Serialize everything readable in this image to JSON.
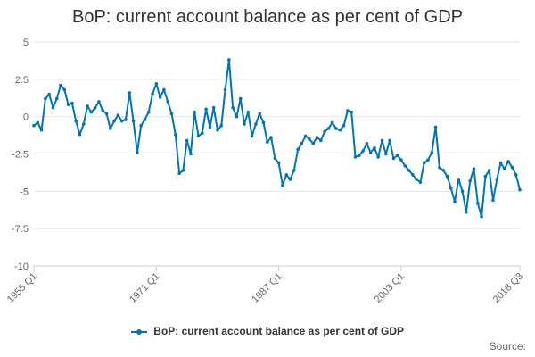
{
  "chart_data": {
    "type": "line",
    "title": "BoP: current account balance as per cent of GDP",
    "xlabel": "",
    "ylabel": "",
    "ylim": [
      -10,
      5
    ],
    "y_ticks": [
      "5",
      "2.5",
      "0",
      "-2.5",
      "-5",
      "-7.5",
      "-10"
    ],
    "y_tick_values": [
      5,
      2.5,
      0,
      -2.5,
      -5,
      -7.5,
      -10
    ],
    "x_ticks": [
      "1955 Q1",
      "1971 Q1",
      "1987 Q1",
      "2003 Q1",
      "2018 Q3"
    ],
    "x_tick_values": [
      1955.0,
      1971.0,
      1987.0,
      2003.0,
      2018.5
    ],
    "xlim": [
      1955.0,
      2018.5
    ],
    "grid": "horizontal",
    "legend_position": "bottom",
    "series": [
      {
        "name": "BoP: current account balance as per cent of GDP",
        "color": "#0075B5",
        "x": [
          1955.0,
          1955.5,
          1956.0,
          1956.5,
          1957.0,
          1957.5,
          1958.0,
          1958.5,
          1959.0,
          1959.5,
          1960.0,
          1960.5,
          1961.0,
          1961.5,
          1962.0,
          1962.5,
          1963.0,
          1963.5,
          1964.0,
          1964.5,
          1965.0,
          1965.5,
          1966.0,
          1966.5,
          1967.0,
          1967.5,
          1968.0,
          1968.5,
          1969.0,
          1969.5,
          1970.0,
          1970.5,
          1971.0,
          1971.5,
          1972.0,
          1972.5,
          1973.0,
          1973.5,
          1974.0,
          1974.5,
          1975.0,
          1975.5,
          1976.0,
          1976.5,
          1977.0,
          1977.5,
          1978.0,
          1978.5,
          1979.0,
          1979.5,
          1980.0,
          1980.5,
          1981.0,
          1981.5,
          1982.0,
          1982.5,
          1983.0,
          1983.5,
          1984.0,
          1984.5,
          1985.0,
          1985.5,
          1986.0,
          1986.5,
          1987.0,
          1987.5,
          1988.0,
          1988.5,
          1989.0,
          1989.5,
          1990.0,
          1990.5,
          1991.0,
          1991.5,
          1992.0,
          1992.5,
          1993.0,
          1993.5,
          1994.0,
          1994.5,
          1995.0,
          1995.5,
          1996.0,
          1996.5,
          1997.0,
          1997.5,
          1998.0,
          1998.5,
          1999.0,
          1999.5,
          2000.0,
          2000.5,
          2001.0,
          2001.5,
          2002.0,
          2002.5,
          2003.0,
          2003.5,
          2004.0,
          2004.5,
          2005.0,
          2005.5,
          2006.0,
          2006.5,
          2007.0,
          2007.5,
          2008.0,
          2008.5,
          2009.0,
          2009.5,
          2010.0,
          2010.5,
          2011.0,
          2011.5,
          2012.0,
          2012.5,
          2013.0,
          2013.5,
          2014.0,
          2014.5,
          2015.0,
          2015.5,
          2016.0,
          2016.5,
          2017.0,
          2017.5,
          2018.0,
          2018.5
        ],
        "values": [
          -0.6,
          -0.4,
          -0.9,
          1.2,
          1.5,
          0.6,
          1.2,
          2.1,
          1.8,
          0.8,
          0.9,
          -0.3,
          -1.2,
          -0.5,
          0.7,
          0.3,
          0.6,
          1.0,
          0.4,
          0.2,
          -0.8,
          -0.3,
          0.1,
          -0.3,
          -0.2,
          1.6,
          -0.3,
          -2.4,
          -0.6,
          -0.2,
          0.3,
          1.5,
          2.2,
          1.3,
          1.8,
          1.0,
          0.2,
          -1.2,
          -3.8,
          -3.6,
          -1.6,
          -2.5,
          0.3,
          -1.3,
          -1.1,
          0.5,
          -0.7,
          0.6,
          -0.9,
          -0.6,
          1.8,
          3.8,
          0.6,
          0.0,
          1.2,
          -0.5,
          0.3,
          -1.3,
          -0.5,
          0.2,
          -0.4,
          -1.7,
          -1.4,
          -2.8,
          -3.1,
          -4.6,
          -3.9,
          -4.2,
          -3.6,
          -2.2,
          -1.8,
          -1.3,
          -1.5,
          -1.8,
          -1.4,
          -1.6,
          -1.0,
          -0.8,
          -0.4,
          -0.8,
          -0.9,
          -0.6,
          0.4,
          0.3,
          -2.7,
          -2.6,
          -2.3,
          -1.8,
          -2.4,
          -2.1,
          -2.7,
          -1.6,
          -2.5,
          -1.6,
          -2.8,
          -2.6,
          -2.9,
          -3.3,
          -3.6,
          -3.9,
          -4.2,
          -4.4,
          -3.1,
          -2.9,
          -2.4,
          -0.7,
          -3.4,
          -3.6,
          -4.0,
          -4.8,
          -5.7,
          -4.2,
          -5.0,
          -6.4,
          -4.3,
          -3.5,
          -5.8,
          -6.7,
          -4.0,
          -3.6,
          -5.6,
          -4.2,
          -3.1,
          -3.5,
          -3.0,
          -3.4,
          -3.9,
          -4.9
        ]
      }
    ]
  },
  "legend": {
    "label": "BoP: current account balance as per cent of GDP"
  },
  "source": {
    "label": "Source:"
  }
}
